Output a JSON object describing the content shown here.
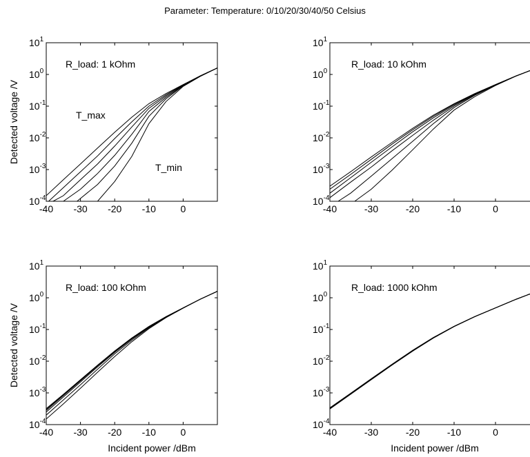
{
  "figure": {
    "suptitle": "Parameter: Temperature: 0/10/20/30/40/50 Celsius",
    "ylabel": "Detected voltage /V",
    "xlabel": "Incident power /dBm"
  },
  "chart_data": [
    {
      "type": "line",
      "scale": {
        "x": "linear",
        "y": "log"
      },
      "xlim": [
        -40,
        10
      ],
      "ylim": [
        0.0001,
        10
      ],
      "xticks": [
        "-40",
        "-30",
        "-20",
        "-10",
        "0"
      ],
      "yticks": [
        {
          "base": "10",
          "exp": "-4"
        },
        {
          "base": "10",
          "exp": "-3"
        },
        {
          "base": "10",
          "exp": "-2"
        },
        {
          "base": "10",
          "exp": "-1"
        },
        {
          "base": "10",
          "exp": "0"
        },
        {
          "base": "10",
          "exp": "1"
        }
      ],
      "ylabel": "Detected voltage /V",
      "xlabel": "",
      "annotations": [
        "R_load: 1 kOhm",
        "T_max",
        "T_min"
      ],
      "color": "#000000",
      "x": [
        -40,
        -35,
        -30,
        -25,
        -20,
        -15,
        -10,
        -5,
        0,
        5,
        10
      ],
      "series": [
        {
          "values": [
            0.00015,
            0.00048,
            0.0015,
            0.0048,
            0.015,
            0.045,
            0.12,
            0.25,
            0.48,
            0.9,
            1.6
          ]
        },
        {
          "values": [
            8.5e-05,
            0.00027,
            0.00085,
            0.0027,
            0.0095,
            0.032,
            0.1,
            0.23,
            0.47,
            0.9,
            1.6
          ]
        },
        {
          "values": null,
          "from": -38,
          "values_from": [
            0.0001,
            0.00015,
            0.00048,
            0.0015,
            0.0055,
            0.022,
            0.085,
            0.21,
            0.46,
            0.9,
            1.6
          ],
          "x_from": [
            -38,
            -35,
            -30,
            -25,
            -20,
            -15,
            -10,
            -5,
            0,
            5,
            10
          ]
        },
        {
          "values": null,
          "x_from": [
            -35,
            -30,
            -25,
            -20,
            -15,
            -10,
            -5,
            0,
            5,
            10
          ],
          "values_from": [
            0.0001,
            0.00024,
            0.00075,
            0.0028,
            0.013,
            0.068,
            0.19,
            0.45,
            0.88,
            1.6
          ]
        },
        {
          "values": null,
          "x_from": [
            -31,
            -25,
            -20,
            -15,
            -10,
            -5,
            0,
            5,
            10
          ],
          "values_from": [
            0.0001,
            0.00034,
            0.0013,
            0.0068,
            0.048,
            0.17,
            0.44,
            0.88,
            1.6
          ]
        },
        {
          "values": null,
          "x_from": [
            -25,
            -20,
            -15,
            -10,
            -5,
            0,
            5,
            10
          ],
          "values_from": [
            0.0001,
            0.00042,
            0.0026,
            0.028,
            0.14,
            0.42,
            0.87,
            1.6
          ]
        }
      ]
    },
    {
      "type": "line",
      "scale": {
        "x": "linear",
        "y": "log"
      },
      "xlim": [
        -40,
        10
      ],
      "ylim": [
        0.0001,
        10
      ],
      "xticks": [
        "-40",
        "-30",
        "-20",
        "-10",
        "0"
      ],
      "yticks": [
        {
          "base": "10",
          "exp": "-4"
        },
        {
          "base": "10",
          "exp": "-3"
        },
        {
          "base": "10",
          "exp": "-2"
        },
        {
          "base": "10",
          "exp": "-1"
        },
        {
          "base": "10",
          "exp": "0"
        },
        {
          "base": "10",
          "exp": "1"
        }
      ],
      "ylabel": "",
      "xlabel": "",
      "annotations": [
        "R_load: 10 kOhm"
      ],
      "color": "#000000",
      "x": [
        -40,
        -35,
        -30,
        -25,
        -20,
        -15,
        -10,
        -5,
        0,
        5,
        10
      ],
      "series": [
        {
          "values": [
            0.0003,
            0.00085,
            0.0025,
            0.0072,
            0.02,
            0.052,
            0.12,
            0.25,
            0.48,
            0.9,
            1.6
          ]
        },
        {
          "values": [
            0.00024,
            0.0007,
            0.0021,
            0.0063,
            0.018,
            0.048,
            0.115,
            0.245,
            0.48,
            0.9,
            1.6
          ]
        },
        {
          "values": [
            0.00018,
            0.00055,
            0.0017,
            0.0052,
            0.0155,
            0.043,
            0.108,
            0.24,
            0.47,
            0.9,
            1.6
          ]
        },
        {
          "values": [
            0.00013,
            0.0004,
            0.0012,
            0.0039,
            0.012,
            0.036,
            0.1,
            0.23,
            0.47,
            0.9,
            1.6
          ]
        },
        {
          "values": null,
          "x_from": [
            -38,
            -35,
            -30,
            -25,
            -20,
            -15,
            -10,
            -5,
            0,
            5,
            10
          ],
          "values_from": [
            0.0001,
            0.00018,
            0.00062,
            0.0022,
            0.0078,
            0.028,
            0.09,
            0.22,
            0.46,
            0.9,
            1.6
          ]
        },
        {
          "values": null,
          "x_from": [
            -34,
            -30,
            -25,
            -20,
            -15,
            -10,
            -5,
            0,
            5,
            10
          ],
          "values_from": [
            0.0001,
            0.00024,
            0.00095,
            0.0042,
            0.019,
            0.075,
            0.2,
            0.45,
            0.89,
            1.6
          ]
        }
      ]
    },
    {
      "type": "line",
      "scale": {
        "x": "linear",
        "y": "log"
      },
      "xlim": [
        -40,
        10
      ],
      "ylim": [
        0.0001,
        10
      ],
      "xticks": [
        "-40",
        "-30",
        "-20",
        "-10",
        "0"
      ],
      "yticks": [
        {
          "base": "10",
          "exp": "-4"
        },
        {
          "base": "10",
          "exp": "-3"
        },
        {
          "base": "10",
          "exp": "-2"
        },
        {
          "base": "10",
          "exp": "-1"
        },
        {
          "base": "10",
          "exp": "0"
        },
        {
          "base": "10",
          "exp": "1"
        }
      ],
      "ylabel": "Detected voltage /V",
      "xlabel": "Incident power /dBm",
      "annotations": [
        "R_load: 100 kOhm"
      ],
      "color": "#000000",
      "x": [
        -40,
        -35,
        -30,
        -25,
        -20,
        -15,
        -10,
        -5,
        0,
        5,
        10
      ],
      "series": [
        {
          "values": [
            0.00032,
            0.0009,
            0.0026,
            0.0075,
            0.021,
            0.054,
            0.125,
            0.255,
            0.48,
            0.9,
            1.6
          ]
        },
        {
          "values": [
            0.0003,
            0.00087,
            0.0025,
            0.0073,
            0.0205,
            0.053,
            0.123,
            0.253,
            0.48,
            0.9,
            1.6
          ]
        },
        {
          "values": [
            0.00028,
            0.00082,
            0.0024,
            0.0071,
            0.02,
            0.052,
            0.121,
            0.25,
            0.48,
            0.9,
            1.6
          ]
        },
        {
          "values": [
            0.00025,
            0.00074,
            0.0022,
            0.0066,
            0.019,
            0.05,
            0.118,
            0.248,
            0.48,
            0.9,
            1.6
          ]
        },
        {
          "values": [
            0.0002,
            0.0006,
            0.0018,
            0.0056,
            0.017,
            0.046,
            0.113,
            0.243,
            0.475,
            0.9,
            1.6
          ]
        },
        {
          "values": [
            0.00015,
            0.00045,
            0.0014,
            0.0045,
            0.014,
            0.041,
            0.106,
            0.236,
            0.47,
            0.9,
            1.6
          ]
        }
      ]
    },
    {
      "type": "line",
      "scale": {
        "x": "linear",
        "y": "log"
      },
      "xlim": [
        -40,
        10
      ],
      "ylim": [
        0.0001,
        10
      ],
      "xticks": [
        "-40",
        "-30",
        "-20",
        "-10",
        "0"
      ],
      "yticks": [
        {
          "base": "10",
          "exp": "-4"
        },
        {
          "base": "10",
          "exp": "-3"
        },
        {
          "base": "10",
          "exp": "-2"
        },
        {
          "base": "10",
          "exp": "-1"
        },
        {
          "base": "10",
          "exp": "0"
        },
        {
          "base": "10",
          "exp": "1"
        }
      ],
      "ylabel": "",
      "xlabel": "Incident power /dBm",
      "annotations": [
        "R_load: 1000 kOhm"
      ],
      "color": "#000000",
      "x": [
        -40,
        -35,
        -30,
        -25,
        -20,
        -15,
        -10,
        -5,
        0,
        5,
        10
      ],
      "series": [
        {
          "values": [
            0.00034,
            0.00097,
            0.0028,
            0.008,
            0.022,
            0.056,
            0.126,
            0.256,
            0.48,
            0.9,
            1.6
          ]
        },
        {
          "values": [
            0.000335,
            0.00096,
            0.00277,
            0.0079,
            0.0218,
            0.0555,
            0.1255,
            0.2555,
            0.48,
            0.9,
            1.6
          ]
        },
        {
          "values": [
            0.00033,
            0.00095,
            0.00274,
            0.0078,
            0.0216,
            0.055,
            0.125,
            0.255,
            0.48,
            0.9,
            1.6
          ]
        },
        {
          "values": [
            0.000325,
            0.00094,
            0.0027,
            0.0077,
            0.0214,
            0.0545,
            0.1245,
            0.2545,
            0.48,
            0.9,
            1.6
          ]
        },
        {
          "values": [
            0.00032,
            0.00092,
            0.00266,
            0.0076,
            0.0211,
            0.054,
            0.124,
            0.254,
            0.479,
            0.9,
            1.6
          ]
        },
        {
          "values": [
            0.00031,
            0.0009,
            0.0026,
            0.0075,
            0.0208,
            0.0535,
            0.1235,
            0.2535,
            0.478,
            0.9,
            1.6
          ]
        }
      ]
    }
  ]
}
